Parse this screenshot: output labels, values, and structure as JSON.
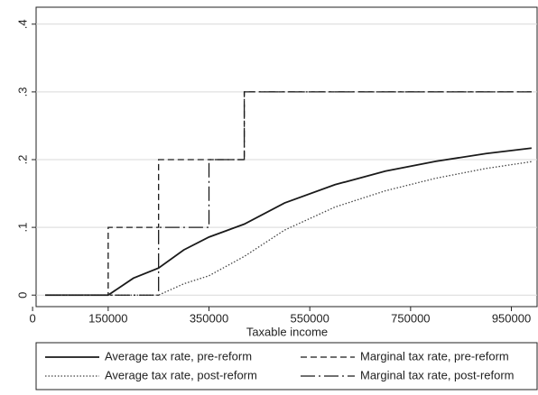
{
  "chart_data": {
    "type": "line",
    "xlabel": "Taxable income",
    "xlim": [
      7000,
      1001000
    ],
    "xticks": [
      0,
      150000,
      350000,
      550000,
      750000,
      950000
    ],
    "ylim": [
      -0.017,
      0.425
    ],
    "yticks": [
      0,
      {
        "value": 0.1,
        "label": ".1"
      },
      {
        "value": 0.2,
        "label": ".2"
      },
      {
        "value": 0.3,
        "label": ".3"
      },
      {
        "value": 0.4,
        "label": ".4"
      }
    ],
    "grid": true,
    "series": [
      {
        "name": "Average tax rate, pre-reform",
        "color": "#1a1a1a",
        "style": "solid",
        "x": [
          25000,
          150000,
          200000,
          250000,
          300000,
          350000,
          420000,
          500000,
          600000,
          700000,
          800000,
          900000,
          990000
        ],
        "values": [
          0,
          0,
          0.025,
          0.04,
          0.0667,
          0.0857,
          0.1048,
          0.136,
          0.163,
          0.183,
          0.1975,
          0.209,
          0.217
        ]
      },
      {
        "name": "Marginal tax rate, pre-reform",
        "color": "#1a1a1a",
        "style": "dashed",
        "x": [
          25000,
          150000,
          150000,
          250000,
          250000,
          420000,
          420000,
          990000
        ],
        "values": [
          0,
          0,
          0.1,
          0.1,
          0.2,
          0.2,
          0.3,
          0.3
        ]
      },
      {
        "name": "Average tax rate, post-reform",
        "color": "#444444",
        "style": "dotted",
        "x": [
          25000,
          250000,
          300000,
          350000,
          420000,
          500000,
          600000,
          700000,
          800000,
          900000,
          990000
        ],
        "values": [
          0,
          0,
          0.0167,
          0.0286,
          0.0571,
          0.096,
          0.13,
          0.154,
          0.1725,
          0.187,
          0.197
        ]
      },
      {
        "name": "Marginal tax rate, post-reform",
        "color": "#1a1a1a",
        "style": "longdash-dot",
        "x": [
          25000,
          250000,
          250000,
          350000,
          350000,
          420000,
          420000,
          990000
        ],
        "values": [
          0,
          0,
          0.1,
          0.1,
          0.2,
          0.2,
          0.3,
          0.3
        ]
      }
    ]
  }
}
